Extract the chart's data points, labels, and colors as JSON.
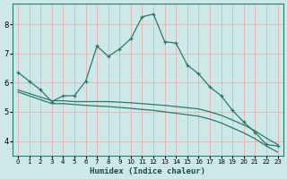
{
  "xlabel": "Humidex (Indice chaleur)",
  "bg_color": "#cce8e8",
  "line_color": "#2a7a6a",
  "grid_color": "#e8b0b0",
  "x_values": [
    0,
    1,
    2,
    3,
    4,
    5,
    6,
    7,
    8,
    9,
    10,
    11,
    12,
    13,
    14,
    15,
    16,
    17,
    18,
    19,
    20,
    21,
    22,
    23
  ],
  "line1_y": [
    6.35,
    6.05,
    5.75,
    5.35,
    5.55,
    5.55,
    6.05,
    7.25,
    6.9,
    7.15,
    7.5,
    8.25,
    8.35,
    7.4,
    7.35,
    6.6,
    6.3,
    5.85,
    5.55,
    5.05,
    4.65,
    4.3,
    3.88,
    3.83
  ],
  "line2_x": [
    0,
    3,
    4,
    5,
    6,
    7,
    8,
    9,
    10,
    11,
    12,
    13,
    14,
    15,
    16,
    17,
    18,
    19,
    20,
    21,
    22,
    23
  ],
  "line2_y": [
    5.75,
    5.38,
    5.38,
    5.35,
    5.35,
    5.35,
    5.35,
    5.33,
    5.31,
    5.28,
    5.25,
    5.22,
    5.18,
    5.14,
    5.1,
    5.0,
    4.88,
    4.72,
    4.55,
    4.35,
    4.1,
    3.88
  ],
  "line3_x": [
    0,
    3,
    4,
    5,
    6,
    7,
    8,
    9,
    10,
    11,
    12,
    13,
    14,
    15,
    16,
    17,
    18,
    19,
    20,
    21,
    22,
    23
  ],
  "line3_y": [
    5.68,
    5.28,
    5.28,
    5.25,
    5.22,
    5.2,
    5.18,
    5.15,
    5.12,
    5.08,
    5.05,
    5.0,
    4.95,
    4.9,
    4.85,
    4.75,
    4.62,
    4.45,
    4.28,
    4.08,
    3.83,
    3.62
  ],
  "ylim": [
    3.5,
    8.7
  ],
  "yticks": [
    4,
    5,
    6,
    7,
    8
  ],
  "xticks": [
    0,
    1,
    2,
    3,
    4,
    5,
    6,
    7,
    8,
    9,
    10,
    11,
    12,
    13,
    14,
    15,
    16,
    17,
    18,
    19,
    20,
    21,
    22,
    23
  ]
}
